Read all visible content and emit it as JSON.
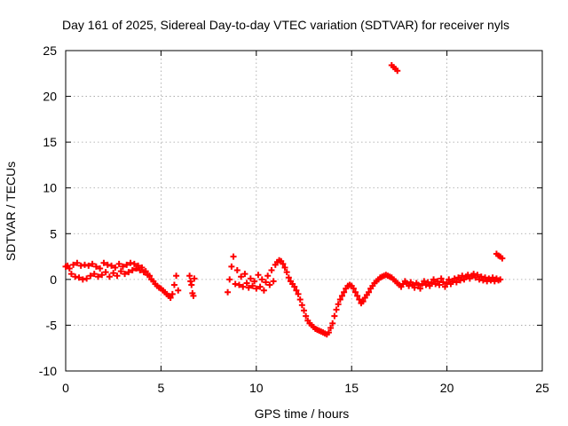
{
  "chart_data": {
    "type": "scatter",
    "title": "Day 161 of 2025, Sidereal Day-to-day VTEC variation (SDTVAR) for receiver nyls",
    "xlabel": "GPS time / hours",
    "ylabel": "SDTVAR / TECUs",
    "xlim": [
      0,
      25
    ],
    "ylim": [
      -10,
      25
    ],
    "xticks": [
      0,
      5,
      10,
      15,
      20,
      25
    ],
    "yticks": [
      -10,
      -5,
      0,
      5,
      10,
      15,
      20,
      25
    ],
    "grid": true,
    "marker": "+",
    "color": "#ff0000",
    "series": [
      {
        "name": "nyls",
        "points": [
          [
            0.0,
            1.4
          ],
          [
            0.1,
            1.5
          ],
          [
            0.2,
            1.2
          ],
          [
            0.3,
            0.6
          ],
          [
            0.4,
            1.6
          ],
          [
            0.5,
            0.3
          ],
          [
            0.6,
            1.8
          ],
          [
            0.7,
            0.2
          ],
          [
            0.8,
            1.5
          ],
          [
            0.9,
            0.0
          ],
          [
            1.0,
            1.6
          ],
          [
            1.1,
            0.1
          ],
          [
            1.2,
            1.5
          ],
          [
            1.3,
            0.4
          ],
          [
            1.4,
            1.7
          ],
          [
            1.5,
            0.6
          ],
          [
            1.6,
            1.4
          ],
          [
            1.7,
            0.3
          ],
          [
            1.8,
            1.2
          ],
          [
            1.9,
            0.5
          ],
          [
            2.0,
            1.8
          ],
          [
            2.1,
            0.8
          ],
          [
            2.2,
            1.6
          ],
          [
            2.3,
            0.3
          ],
          [
            2.4,
            1.5
          ],
          [
            2.5,
            0.7
          ],
          [
            2.6,
            1.3
          ],
          [
            2.7,
            0.4
          ],
          [
            2.8,
            1.7
          ],
          [
            2.9,
            0.9
          ],
          [
            3.0,
            1.4
          ],
          [
            3.1,
            0.6
          ],
          [
            3.2,
            1.6
          ],
          [
            3.3,
            0.8
          ],
          [
            3.4,
            1.8
          ],
          [
            3.5,
            1.0
          ],
          [
            3.6,
            1.7
          ],
          [
            3.7,
            1.2
          ],
          [
            3.8,
            1.5
          ],
          [
            3.9,
            1.0
          ],
          [
            4.0,
            1.3
          ],
          [
            4.1,
            0.8
          ],
          [
            4.2,
            0.9
          ],
          [
            4.3,
            0.5
          ],
          [
            4.4,
            0.4
          ],
          [
            4.5,
            0.0
          ],
          [
            4.6,
            -0.2
          ],
          [
            4.7,
            -0.5
          ],
          [
            4.8,
            -0.7
          ],
          [
            4.9,
            -0.9
          ],
          [
            5.0,
            -1.0
          ],
          [
            5.1,
            -1.2
          ],
          [
            5.2,
            -1.4
          ],
          [
            5.3,
            -1.6
          ],
          [
            5.4,
            -1.8
          ],
          [
            5.5,
            -2.0
          ],
          [
            5.6,
            -1.6
          ],
          [
            5.7,
            -0.6
          ],
          [
            5.8,
            0.4
          ],
          [
            5.9,
            -1.2
          ],
          [
            6.5,
            0.4
          ],
          [
            6.55,
            -0.2
          ],
          [
            6.6,
            -0.6
          ],
          [
            6.65,
            -1.5
          ],
          [
            6.7,
            -1.8
          ],
          [
            6.75,
            0.1
          ],
          [
            8.5,
            -1.4
          ],
          [
            8.6,
            0.0
          ],
          [
            8.7,
            1.4
          ],
          [
            8.8,
            2.5
          ],
          [
            8.9,
            -0.5
          ],
          [
            9.0,
            1.0
          ],
          [
            9.1,
            -0.6
          ],
          [
            9.2,
            0.3
          ],
          [
            9.3,
            -0.8
          ],
          [
            9.4,
            0.6
          ],
          [
            9.5,
            -0.4
          ],
          [
            9.6,
            -0.9
          ],
          [
            9.7,
            0.1
          ],
          [
            9.8,
            -0.7
          ],
          [
            9.9,
            -0.2
          ],
          [
            10.0,
            -1.0
          ],
          [
            10.1,
            0.5
          ],
          [
            10.2,
            -0.8
          ],
          [
            10.3,
            0.0
          ],
          [
            10.4,
            -1.2
          ],
          [
            10.5,
            -0.3
          ],
          [
            10.6,
            0.4
          ],
          [
            10.7,
            -0.6
          ],
          [
            10.8,
            1.0
          ],
          [
            10.9,
            -0.2
          ],
          [
            11.0,
            1.6
          ],
          [
            11.1,
            1.9
          ],
          [
            11.2,
            2.1
          ],
          [
            11.3,
            2.0
          ],
          [
            11.4,
            1.7
          ],
          [
            11.5,
            1.3
          ],
          [
            11.6,
            0.8
          ],
          [
            11.7,
            0.2
          ],
          [
            11.8,
            -0.2
          ],
          [
            11.9,
            -0.5
          ],
          [
            12.0,
            -0.8
          ],
          [
            12.1,
            -1.2
          ],
          [
            12.2,
            -1.6
          ],
          [
            12.3,
            -2.2
          ],
          [
            12.4,
            -2.8
          ],
          [
            12.5,
            -3.4
          ],
          [
            12.6,
            -4.0
          ],
          [
            12.7,
            -4.5
          ],
          [
            12.8,
            -4.8
          ],
          [
            12.9,
            -5.0
          ],
          [
            13.0,
            -5.2
          ],
          [
            13.1,
            -5.4
          ],
          [
            13.2,
            -5.5
          ],
          [
            13.3,
            -5.6
          ],
          [
            13.4,
            -5.7
          ],
          [
            13.5,
            -5.8
          ],
          [
            13.6,
            -5.9
          ],
          [
            13.7,
            -6.0
          ],
          [
            13.8,
            -5.8
          ],
          [
            13.9,
            -5.3
          ],
          [
            14.0,
            -4.8
          ],
          [
            14.1,
            -4.0
          ],
          [
            14.2,
            -3.3
          ],
          [
            14.3,
            -2.7
          ],
          [
            14.4,
            -2.2
          ],
          [
            14.5,
            -1.8
          ],
          [
            14.6,
            -1.4
          ],
          [
            14.7,
            -1.0
          ],
          [
            14.8,
            -0.7
          ],
          [
            14.9,
            -0.6
          ],
          [
            15.0,
            -0.7
          ],
          [
            15.1,
            -1.0
          ],
          [
            15.2,
            -1.4
          ],
          [
            15.3,
            -1.8
          ],
          [
            15.4,
            -2.2
          ],
          [
            15.5,
            -2.6
          ],
          [
            15.6,
            -2.4
          ],
          [
            15.7,
            -2.0
          ],
          [
            15.8,
            -1.7
          ],
          [
            15.9,
            -1.4
          ],
          [
            16.0,
            -1.0
          ],
          [
            16.1,
            -0.7
          ],
          [
            16.2,
            -0.4
          ],
          [
            16.3,
            -0.2
          ],
          [
            16.4,
            0.0
          ],
          [
            16.5,
            0.2
          ],
          [
            16.6,
            0.3
          ],
          [
            16.7,
            0.4
          ],
          [
            16.8,
            0.5
          ],
          [
            16.9,
            0.4
          ],
          [
            17.0,
            0.3
          ],
          [
            17.1,
            0.2
          ],
          [
            17.2,
            0.0
          ],
          [
            17.3,
            -0.2
          ],
          [
            17.4,
            -0.4
          ],
          [
            17.5,
            -0.6
          ],
          [
            17.6,
            -0.8
          ],
          [
            17.7,
            -0.5
          ],
          [
            17.8,
            -0.2
          ],
          [
            17.9,
            -0.4
          ],
          [
            18.0,
            -0.7
          ],
          [
            18.1,
            -0.3
          ],
          [
            18.2,
            -0.6
          ],
          [
            18.3,
            -0.9
          ],
          [
            18.4,
            -0.4
          ],
          [
            18.5,
            -0.6
          ],
          [
            18.6,
            -1.0
          ],
          [
            18.7,
            -0.5
          ],
          [
            18.8,
            -0.2
          ],
          [
            18.9,
            -0.6
          ],
          [
            19.0,
            -0.3
          ],
          [
            19.1,
            -0.7
          ],
          [
            19.2,
            -0.4
          ],
          [
            19.3,
            0.0
          ],
          [
            19.4,
            -0.5
          ],
          [
            19.5,
            -0.2
          ],
          [
            19.6,
            -0.6
          ],
          [
            19.7,
            0.1
          ],
          [
            19.8,
            -0.3
          ],
          [
            19.9,
            -0.8
          ],
          [
            20.0,
            -0.4
          ],
          [
            20.1,
            0.0
          ],
          [
            20.2,
            -0.5
          ],
          [
            20.3,
            -0.2
          ],
          [
            20.4,
            0.1
          ],
          [
            20.5,
            -0.3
          ],
          [
            20.6,
            0.2
          ],
          [
            20.7,
            -0.1
          ],
          [
            20.8,
            0.4
          ],
          [
            20.9,
            0.0
          ],
          [
            21.0,
            0.3
          ],
          [
            21.1,
            0.5
          ],
          [
            21.2,
            0.1
          ],
          [
            21.3,
            0.4
          ],
          [
            21.4,
            0.6
          ],
          [
            21.5,
            0.2
          ],
          [
            21.6,
            0.5
          ],
          [
            21.7,
            0.0
          ],
          [
            21.8,
            0.3
          ],
          [
            21.9,
            -0.1
          ],
          [
            22.0,
            0.2
          ],
          [
            22.1,
            -0.2
          ],
          [
            22.2,
            0.1
          ],
          [
            22.3,
            -0.1
          ],
          [
            22.4,
            0.2
          ],
          [
            22.5,
            -0.2
          ],
          [
            22.6,
            0.1
          ],
          [
            22.7,
            -0.1
          ],
          [
            22.8,
            0.0
          ],
          [
            22.6,
            2.8
          ],
          [
            22.7,
            2.6
          ],
          [
            22.8,
            2.5
          ],
          [
            22.9,
            2.3
          ],
          [
            17.1,
            23.4
          ],
          [
            17.2,
            23.2
          ],
          [
            17.3,
            23.0
          ],
          [
            17.4,
            22.8
          ]
        ]
      }
    ]
  }
}
